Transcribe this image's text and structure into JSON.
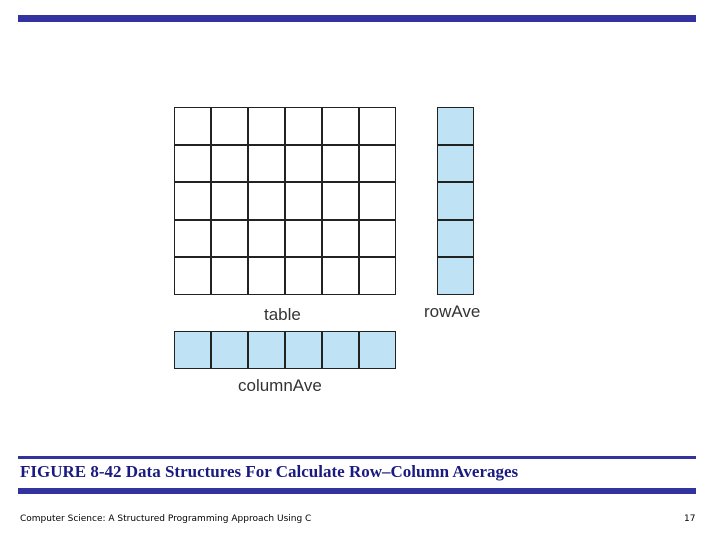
{
  "diagram": {
    "table": {
      "label": "table",
      "rows": 5,
      "cols": 6
    },
    "row_ave": {
      "label": "rowAve",
      "rows": 5,
      "cols": 1
    },
    "column_ave": {
      "label": "columnAve",
      "rows": 1,
      "cols": 6
    },
    "colors": {
      "data_cell": "#ffffff",
      "average_cell": "#bfe3f5",
      "cell_border": "#222222"
    }
  },
  "caption": "FIGURE 8-42  Data Structures For Calculate Row–Column Averages",
  "footer": {
    "text": "Computer Science: A Structured Programming Approach Using C",
    "page_number": "17"
  },
  "colors": {
    "accent_bar": "#3333a0",
    "caption": "#1a1a80"
  }
}
